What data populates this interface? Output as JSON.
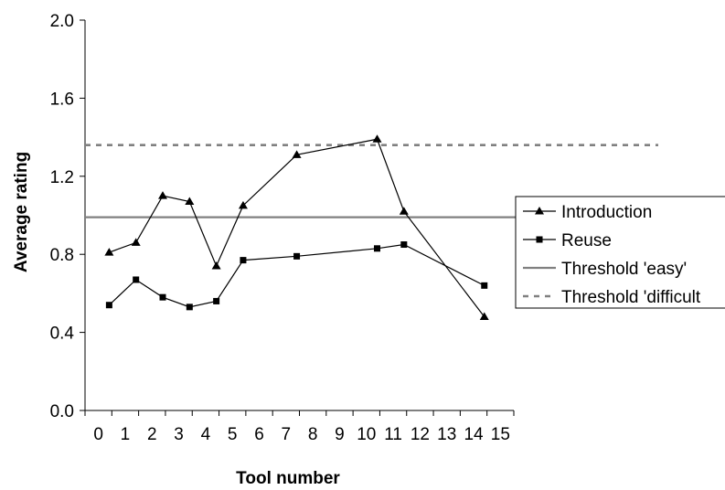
{
  "chart_data": {
    "type": "line",
    "title": "",
    "xlabel": "Tool number",
    "ylabel": "Average rating",
    "x_ticks": [
      "0",
      "1",
      "2",
      "3",
      "4",
      "5",
      "6",
      "7",
      "8",
      "9",
      "10",
      "11",
      "12",
      "13",
      "14",
      "15"
    ],
    "xlim": [
      0,
      16
    ],
    "y_ticks": [
      "0.0",
      "0.4",
      "0.8",
      "1.2",
      "1.6",
      "2.0"
    ],
    "ylim": [
      0,
      2.0
    ],
    "grid": false,
    "legend_position": "right",
    "series": [
      {
        "name": "Introduction",
        "marker": "triangle",
        "color": "#000000",
        "x": [
          0.9,
          1.9,
          2.9,
          3.9,
          4.9,
          5.9,
          7.9,
          10.9,
          11.9,
          14.9
        ],
        "y": [
          0.81,
          0.86,
          1.1,
          1.07,
          0.74,
          1.05,
          1.31,
          1.39,
          1.02,
          0.48
        ]
      },
      {
        "name": "Reuse",
        "marker": "square",
        "color": "#000000",
        "x": [
          0.9,
          1.9,
          2.9,
          3.9,
          4.9,
          5.9,
          7.9,
          10.9,
          11.9,
          14.9
        ],
        "y": [
          0.54,
          0.67,
          0.58,
          0.53,
          0.56,
          0.77,
          0.79,
          0.83,
          0.85,
          0.64
        ]
      }
    ],
    "thresholds": [
      {
        "name": "Threshold 'easy'",
        "value": 0.99,
        "style": "solid",
        "color": "#808080"
      },
      {
        "name": "Threshold 'difficult",
        "value": 1.36,
        "style": "dashed",
        "color": "#808080"
      }
    ]
  }
}
